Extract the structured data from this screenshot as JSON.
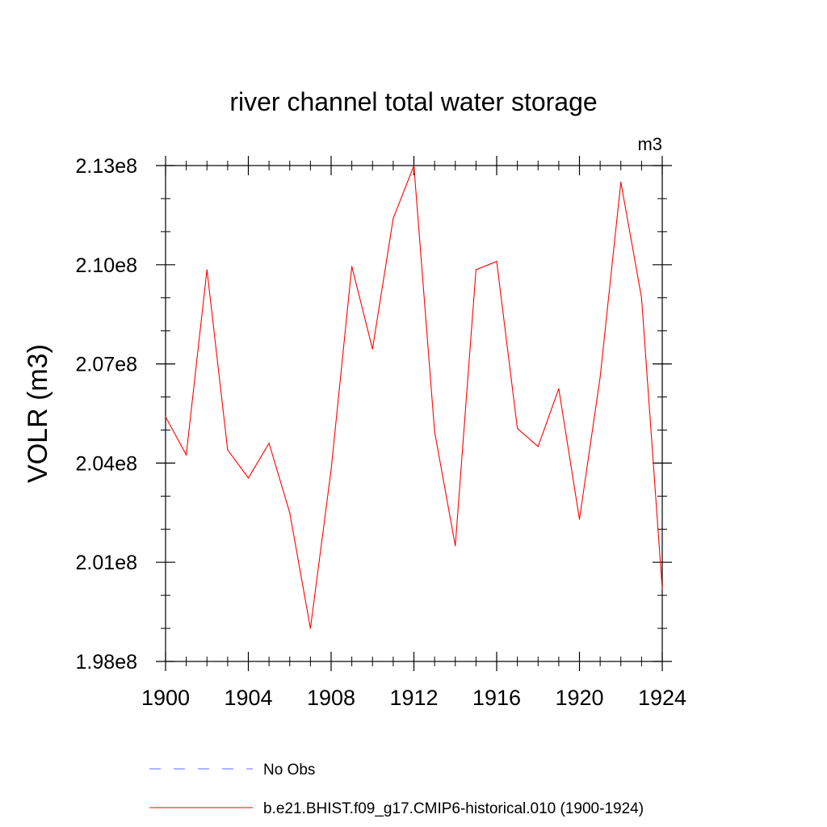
{
  "chart_data": {
    "type": "line",
    "title": "river channel total water storage",
    "units_label": "m3",
    "ylabel": "VOLR  (m3)",
    "xlabel": "",
    "xlim": [
      1900,
      1924
    ],
    "ylim": [
      198000000,
      213000000
    ],
    "x_ticks": [
      1900,
      1904,
      1908,
      1912,
      1916,
      1920,
      1924
    ],
    "x_tick_labels": [
      "1900",
      "1904",
      "1908",
      "1912",
      "1916",
      "1920",
      "1924"
    ],
    "y_ticks": [
      198000000,
      201000000,
      204000000,
      207000000,
      210000000,
      213000000
    ],
    "y_tick_labels": [
      "1.98e8",
      "2.01e8",
      "2.04e8",
      "2.07e8",
      "2.10e8",
      "2.13e8"
    ],
    "x_minor_step": 1,
    "y_minor_step": 1000000,
    "grid": false,
    "legend_position": "bottom",
    "x": [
      1900,
      1901,
      1902,
      1903,
      1904,
      1905,
      1906,
      1907,
      1908,
      1909,
      1910,
      1911,
      1912,
      1913,
      1914,
      1915,
      1916,
      1917,
      1918,
      1919,
      1920,
      1921,
      1922,
      1923,
      1924
    ],
    "series": [
      {
        "name": "b.e21.BHIST.f09_g17.CMIP6-historical.010 (1900-1924)",
        "color": "#ff0000",
        "dash": "solid",
        "values": [
          205400000,
          204250000,
          209850000,
          204400000,
          203550000,
          204600000,
          202500000,
          199000000,
          203800000,
          209950000,
          207450000,
          211400000,
          213000000,
          204950000,
          201500000,
          209850000,
          210100000,
          205050000,
          204500000,
          206250000,
          202300000,
          206600000,
          212500000,
          209000000,
          200200000
        ]
      }
    ],
    "legend": [
      {
        "label": "No Obs",
        "color": "#6a6aff",
        "dash": "dashed"
      },
      {
        "label": "b.e21.BHIST.f09_g17.CMIP6-historical.010 (1900-1924)",
        "color": "#ff0000",
        "dash": "solid"
      }
    ]
  }
}
